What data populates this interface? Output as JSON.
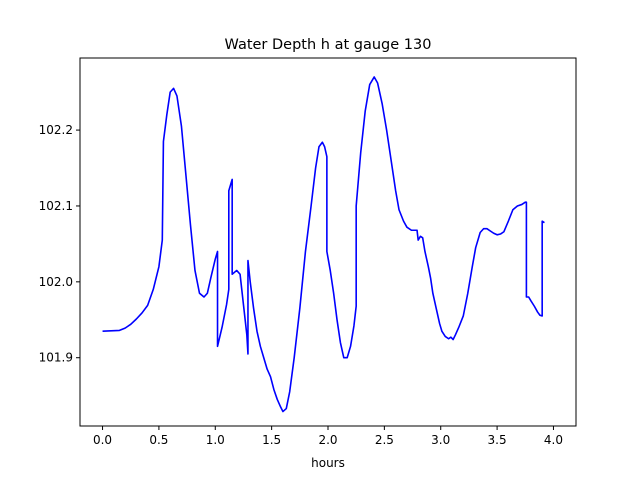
{
  "chart_data": {
    "type": "line",
    "title": "Water Depth h at gauge 130",
    "xlabel": "hours",
    "ylabel": "",
    "xlim": [
      -0.2,
      4.2
    ],
    "ylim": [
      101.81,
      102.295
    ],
    "xticks": [
      0.0,
      0.5,
      1.0,
      1.5,
      2.0,
      2.5,
      3.0,
      3.5,
      4.0
    ],
    "xtick_labels": [
      "0.0",
      "0.5",
      "1.0",
      "1.5",
      "2.0",
      "2.5",
      "3.0",
      "3.5",
      "4.0"
    ],
    "yticks": [
      101.9,
      102.0,
      102.1,
      102.2
    ],
    "ytick_labels": [
      "101.9",
      "102.0",
      "102.1",
      "102.2"
    ],
    "grid": false,
    "legend": "none",
    "series": [
      {
        "color": "#0000ff",
        "points": [
          [
            0.0,
            101.935
          ],
          [
            0.15,
            101.936
          ],
          [
            0.2,
            101.939
          ],
          [
            0.25,
            101.944
          ],
          [
            0.3,
            101.951
          ],
          [
            0.35,
            101.959
          ],
          [
            0.4,
            101.969
          ],
          [
            0.45,
            101.99
          ],
          [
            0.5,
            102.02
          ],
          [
            0.53,
            102.055
          ],
          [
            0.54,
            102.185
          ],
          [
            0.57,
            102.22
          ],
          [
            0.6,
            102.25
          ],
          [
            0.63,
            102.255
          ],
          [
            0.66,
            102.245
          ],
          [
            0.7,
            102.205
          ],
          [
            0.74,
            102.14
          ],
          [
            0.78,
            102.075
          ],
          [
            0.82,
            102.015
          ],
          [
            0.86,
            101.985
          ],
          [
            0.9,
            101.98
          ],
          [
            0.93,
            101.985
          ],
          [
            0.96,
            102.005
          ],
          [
            1.0,
            102.03
          ],
          [
            1.02,
            102.04
          ],
          [
            1.02,
            101.915
          ],
          [
            1.06,
            101.94
          ],
          [
            1.1,
            101.97
          ],
          [
            1.12,
            101.99
          ],
          [
            1.12,
            102.12
          ],
          [
            1.15,
            102.135
          ],
          [
            1.15,
            102.01
          ],
          [
            1.19,
            102.015
          ],
          [
            1.22,
            102.01
          ],
          [
            1.25,
            101.97
          ],
          [
            1.28,
            101.93
          ],
          [
            1.29,
            101.905
          ],
          [
            1.29,
            102.028
          ],
          [
            1.31,
            102.0
          ],
          [
            1.34,
            101.965
          ],
          [
            1.37,
            101.935
          ],
          [
            1.4,
            101.915
          ],
          [
            1.43,
            101.9
          ],
          [
            1.46,
            101.885
          ],
          [
            1.49,
            101.875
          ],
          [
            1.52,
            101.858
          ],
          [
            1.55,
            101.845
          ],
          [
            1.58,
            101.835
          ],
          [
            1.6,
            101.829
          ],
          [
            1.63,
            101.833
          ],
          [
            1.66,
            101.855
          ],
          [
            1.7,
            101.9
          ],
          [
            1.75,
            101.965
          ],
          [
            1.8,
            102.04
          ],
          [
            1.85,
            102.1
          ],
          [
            1.89,
            102.15
          ],
          [
            1.92,
            102.178
          ],
          [
            1.95,
            102.184
          ],
          [
            1.97,
            102.178
          ],
          [
            1.99,
            102.165
          ],
          [
            1.99,
            102.04
          ],
          [
            2.02,
            102.015
          ],
          [
            2.05,
            101.985
          ],
          [
            2.08,
            101.95
          ],
          [
            2.11,
            101.92
          ],
          [
            2.14,
            101.9
          ],
          [
            2.17,
            101.9
          ],
          [
            2.2,
            101.915
          ],
          [
            2.23,
            101.942
          ],
          [
            2.25,
            101.968
          ],
          [
            2.25,
            102.1
          ],
          [
            2.29,
            102.17
          ],
          [
            2.33,
            102.225
          ],
          [
            2.37,
            102.26
          ],
          [
            2.41,
            102.27
          ],
          [
            2.44,
            102.262
          ],
          [
            2.48,
            102.235
          ],
          [
            2.52,
            102.2
          ],
          [
            2.56,
            102.16
          ],
          [
            2.6,
            102.12
          ],
          [
            2.63,
            102.095
          ],
          [
            2.67,
            102.08
          ],
          [
            2.7,
            102.072
          ],
          [
            2.74,
            102.068
          ],
          [
            2.77,
            102.068
          ],
          [
            2.79,
            102.068
          ],
          [
            2.8,
            102.055
          ],
          [
            2.82,
            102.06
          ],
          [
            2.84,
            102.058
          ],
          [
            2.86,
            102.04
          ],
          [
            2.89,
            102.02
          ],
          [
            2.91,
            102.005
          ],
          [
            2.93,
            101.985
          ],
          [
            2.96,
            101.965
          ],
          [
            2.99,
            101.945
          ],
          [
            3.01,
            101.935
          ],
          [
            3.04,
            101.928
          ],
          [
            3.07,
            101.925
          ],
          [
            3.09,
            101.927
          ],
          [
            3.11,
            101.924
          ],
          [
            3.13,
            101.93
          ],
          [
            3.16,
            101.94
          ],
          [
            3.2,
            101.955
          ],
          [
            3.24,
            101.985
          ],
          [
            3.28,
            102.02
          ],
          [
            3.31,
            102.045
          ],
          [
            3.35,
            102.065
          ],
          [
            3.38,
            102.07
          ],
          [
            3.41,
            102.07
          ],
          [
            3.44,
            102.067
          ],
          [
            3.47,
            102.064
          ],
          [
            3.5,
            102.062
          ],
          [
            3.53,
            102.063
          ],
          [
            3.56,
            102.066
          ],
          [
            3.6,
            102.08
          ],
          [
            3.64,
            102.095
          ],
          [
            3.68,
            102.1
          ],
          [
            3.72,
            102.102
          ],
          [
            3.75,
            102.105
          ],
          [
            3.76,
            102.105
          ],
          [
            3.76,
            101.98
          ],
          [
            3.78,
            101.98
          ],
          [
            3.8,
            101.975
          ],
          [
            3.83,
            101.968
          ],
          [
            3.86,
            101.96
          ],
          [
            3.88,
            101.956
          ],
          [
            3.9,
            101.955
          ],
          [
            3.9,
            102.08
          ],
          [
            3.92,
            102.078
          ]
        ]
      }
    ]
  }
}
